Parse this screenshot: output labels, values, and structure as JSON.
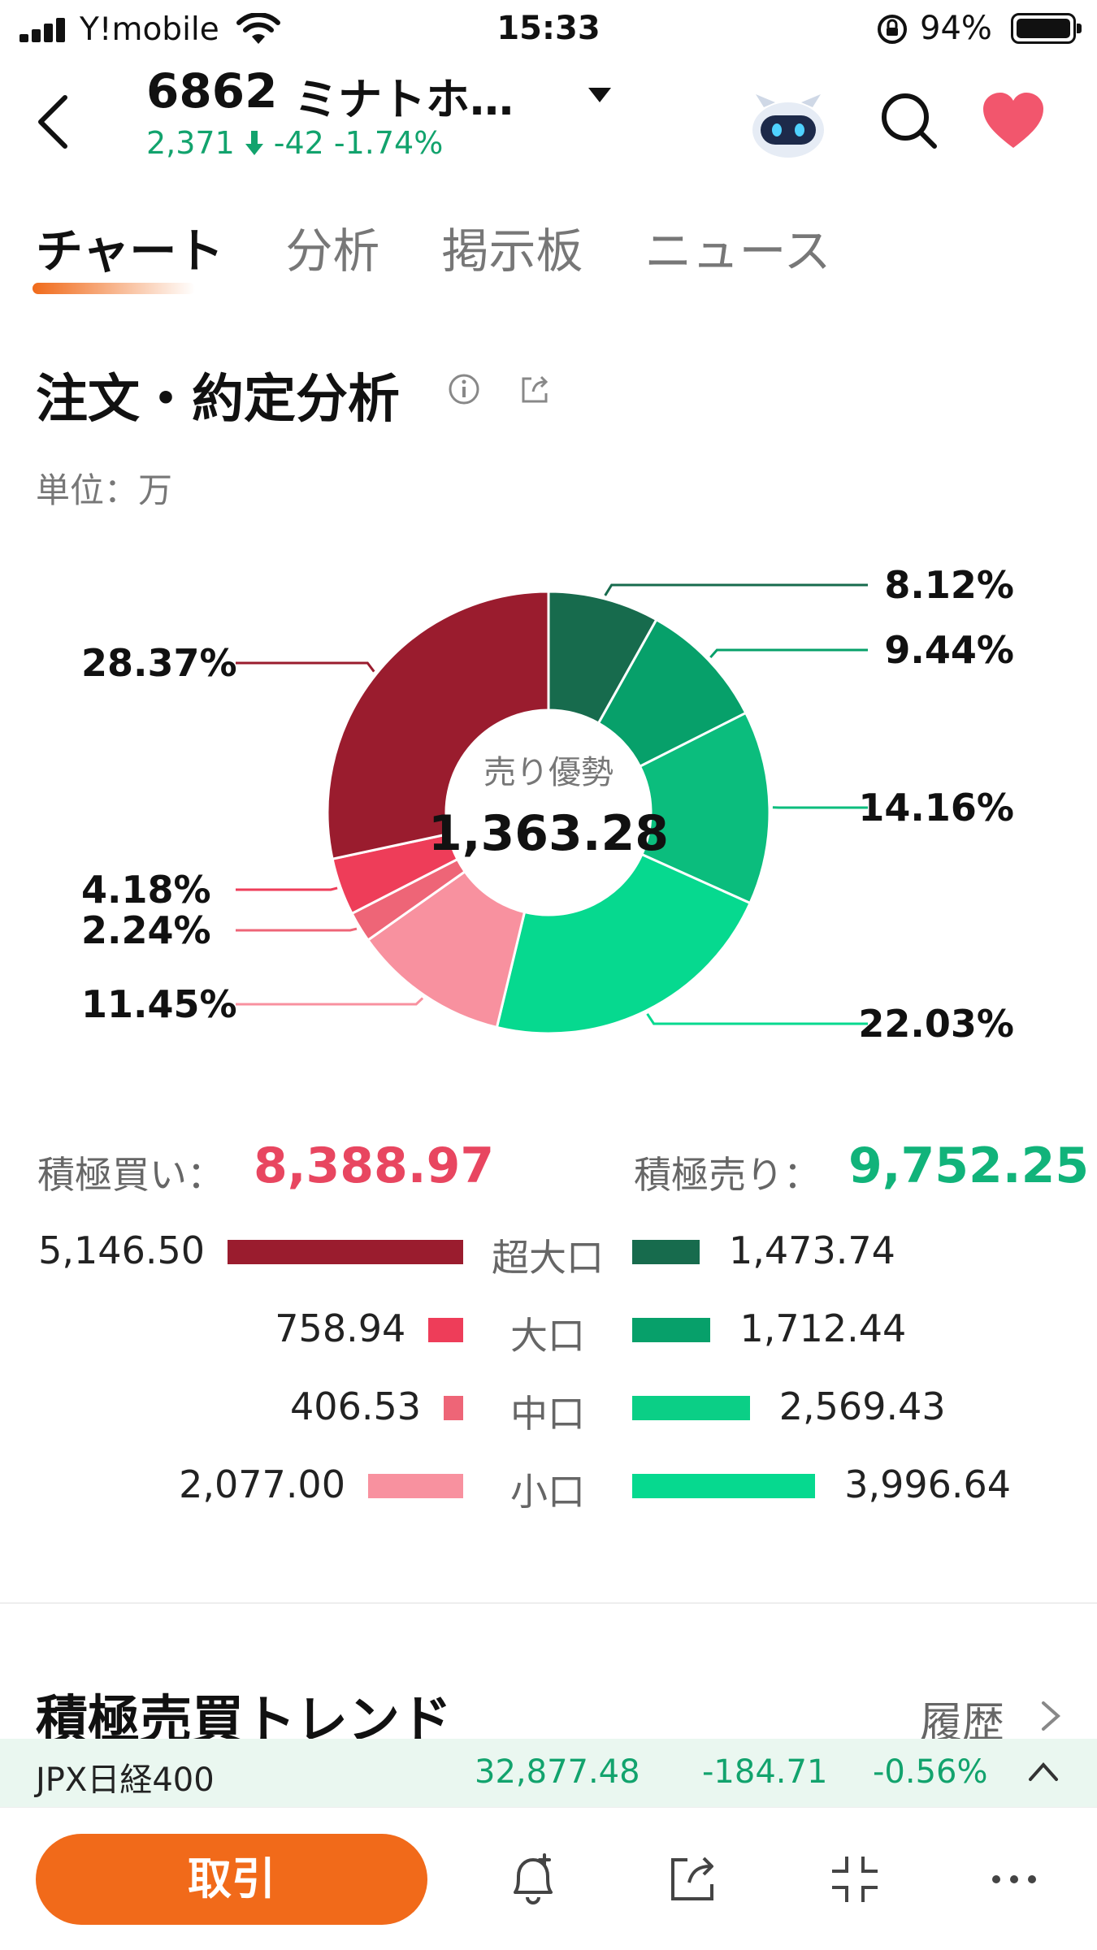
{
  "status_bar": {
    "carrier": "Y!mobile",
    "time": "15:33",
    "battery": "94%"
  },
  "header": {
    "code": "6862",
    "name": "ミナトホ…",
    "price": "2,371",
    "change": "-42",
    "change_pct": "-1.74%"
  },
  "tabs": [
    {
      "label": "チャート",
      "active": true
    },
    {
      "label": "分析",
      "active": false
    },
    {
      "label": "掲示板",
      "active": false
    },
    {
      "label": "ニュース",
      "active": false
    }
  ],
  "section": {
    "title": "注文・約定分析",
    "unit": "単位：万"
  },
  "chart_data": {
    "type": "pie",
    "center_label": "売り優勢",
    "center_value": "1,363.28",
    "slices": [
      {
        "category": "超大口",
        "side": "sell",
        "value_pct": 8.12,
        "label": "8.12%",
        "color": "#176b4d"
      },
      {
        "category": "大口",
        "side": "sell",
        "value_pct": 9.44,
        "label": "9.44%",
        "color": "#07a06a"
      },
      {
        "category": "中口",
        "side": "sell",
        "value_pct": 14.16,
        "label": "14.16%",
        "color": "#0bbd7d"
      },
      {
        "category": "小口",
        "side": "sell",
        "value_pct": 22.03,
        "label": "22.03%",
        "color": "#06d98f"
      },
      {
        "category": "小口",
        "side": "buy",
        "value_pct": 11.45,
        "label": "11.45%",
        "color": "#f8919f"
      },
      {
        "category": "中口",
        "side": "buy",
        "value_pct": 2.24,
        "label": "2.24%",
        "color": "#ee6577"
      },
      {
        "category": "大口",
        "side": "buy",
        "value_pct": 4.18,
        "label": "4.18%",
        "color": "#ee3d59"
      },
      {
        "category": "超大口",
        "side": "buy",
        "value_pct": 28.37,
        "label": "28.37%",
        "color": "#9a1c2e"
      }
    ]
  },
  "totals": {
    "buy_label": "積極買い：",
    "buy_value": "8,388.97",
    "sell_label": "積極売り：",
    "sell_value": "9,752.25"
  },
  "breakdown": [
    {
      "category": "超大口",
      "buy": 5146.5,
      "buy_label": "5,146.50",
      "sell": 1473.74,
      "sell_label": "1,473.74",
      "buy_color": "#9a1c2e",
      "sell_color": "#176b4d"
    },
    {
      "category": "大口",
      "buy": 758.94,
      "buy_label": "758.94",
      "sell": 1712.44,
      "sell_label": "1,712.44",
      "buy_color": "#ee3d59",
      "sell_color": "#07a06a"
    },
    {
      "category": "中口",
      "buy": 406.53,
      "buy_label": "406.53",
      "sell": 2569.43,
      "sell_label": "2,569.43",
      "buy_color": "#ee6577",
      "sell_color": "#0bcf86"
    },
    {
      "category": "小口",
      "buy": 2077.0,
      "buy_label": "2,077.00",
      "sell": 3996.64,
      "sell_label": "3,996.64",
      "buy_color": "#f8919f",
      "sell_color": "#06d98f"
    }
  ],
  "trend": {
    "title": "積極売買トレンド",
    "history_label": "履歴"
  },
  "index_ticker": {
    "name": "JPX日経400",
    "price": "32,877.48",
    "change": "-184.71",
    "change_pct": "-0.56%"
  },
  "bottom_bar": {
    "trade_label": "取引",
    "icons": [
      "alert-bell-icon",
      "share-icon",
      "collapse-icon",
      "more-icon"
    ]
  },
  "colors": {
    "accent": "#f16a1a",
    "down_green": "#12a36d",
    "buy_red": "#e84660"
  }
}
